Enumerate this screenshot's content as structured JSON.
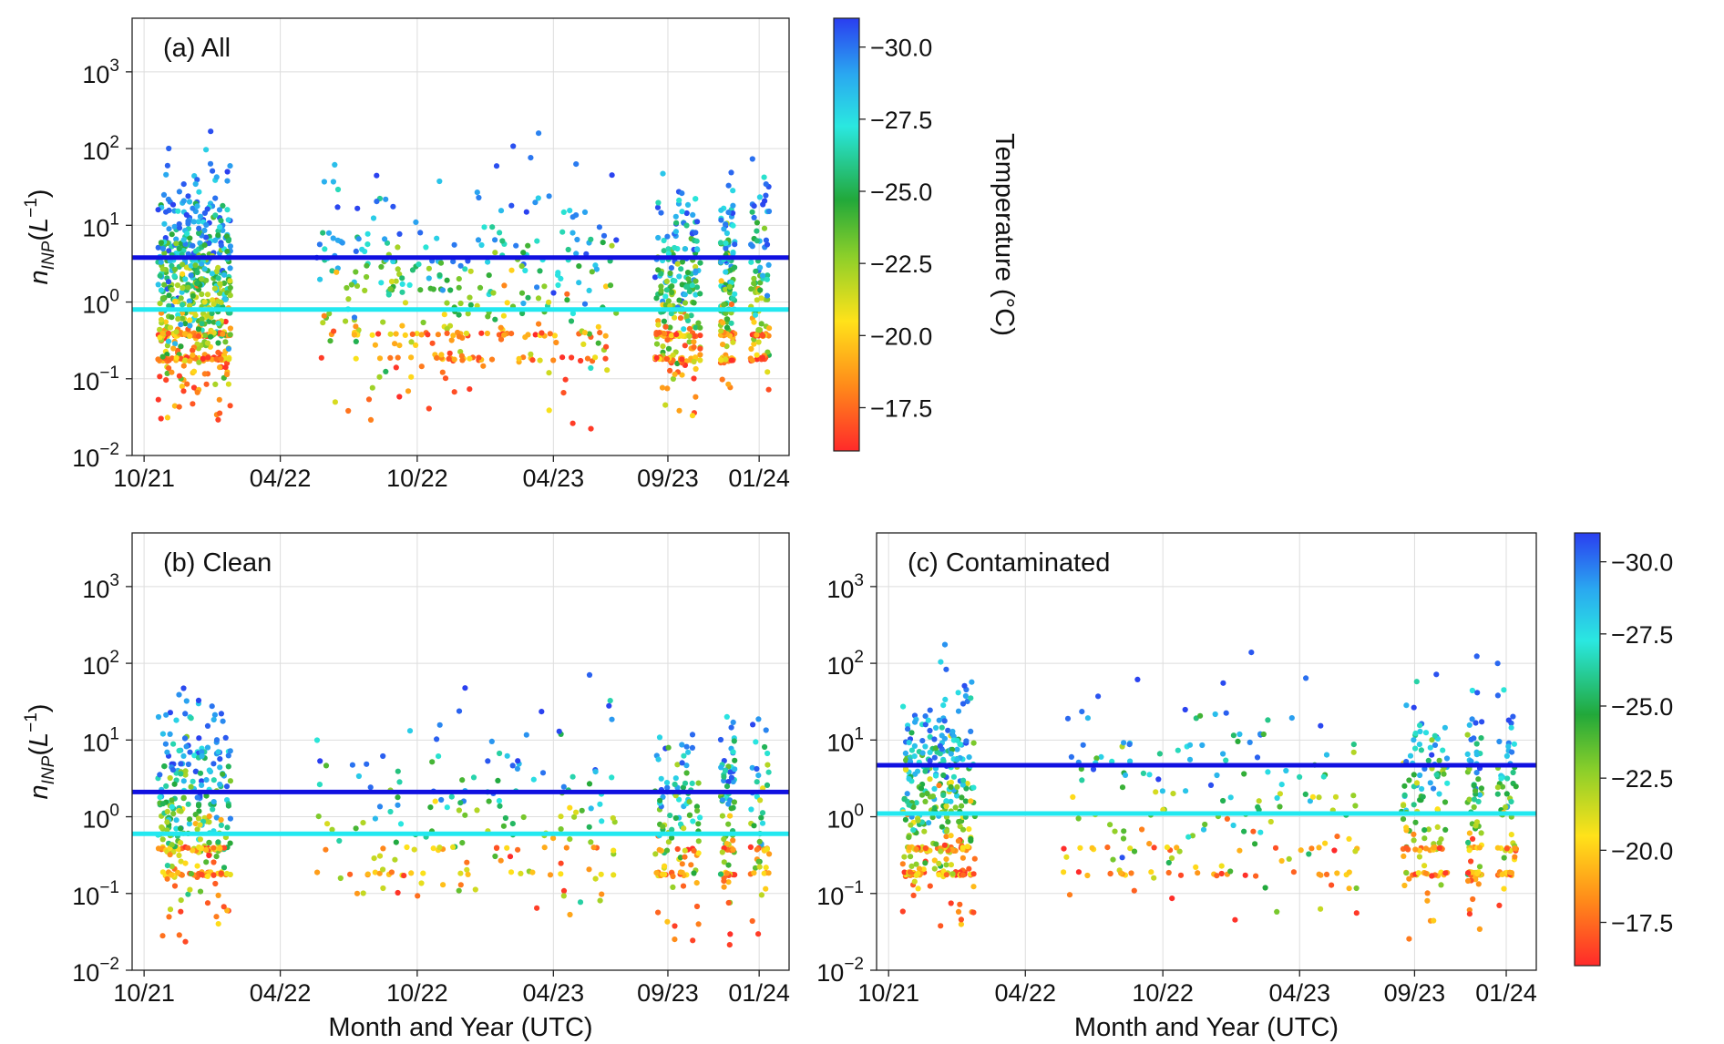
{
  "chart_data": [
    {
      "type": "scatter",
      "panel": "a",
      "title": "(a) All",
      "xlabel": "",
      "ylabel": "n_INP(L^-1)",
      "y_scale": "log",
      "ylim": [
        0.01,
        5000
      ],
      "xlim": [
        "2021-09-15",
        "2024-02-10"
      ],
      "x_ticks": [
        "10/21",
        "04/22",
        "10/22",
        "04/23",
        "09/23",
        "01/24"
      ],
      "y_ticks": [
        "10^-2",
        "10^-1",
        "10^0",
        "10^1",
        "10^2",
        "10^3"
      ],
      "grid": true,
      "colorbar": "shown",
      "hlines": [
        {
          "color": "#1010e0",
          "y": 3.8
        },
        {
          "color": "#22e8f0",
          "y": 0.8
        }
      ],
      "campaigns": [
        {
          "start": "2021-10-20",
          "end": "2022-01-25"
        },
        {
          "start": "2022-05-20",
          "end": "2023-06-25"
        },
        {
          "start": "2023-08-15",
          "end": "2023-10-15"
        },
        {
          "start": "2023-11-10",
          "end": "2023-11-30"
        },
        {
          "start": "2023-12-20",
          "end": "2024-01-15"
        }
      ],
      "point_count_estimate": 9000
    },
    {
      "type": "scatter",
      "panel": "b",
      "title": "(b) Clean",
      "xlabel": "Month and Year (UTC)",
      "ylabel": "n_INP(L^-1)",
      "y_scale": "log",
      "ylim": [
        0.01,
        5000
      ],
      "xlim": [
        "2021-09-15",
        "2024-02-10"
      ],
      "x_ticks": [
        "10/21",
        "04/22",
        "10/22",
        "04/23",
        "09/23",
        "01/24"
      ],
      "y_ticks": [
        "10^-2",
        "10^-1",
        "10^0",
        "10^1",
        "10^2",
        "10^3"
      ],
      "grid": true,
      "colorbar": "none",
      "hlines": [
        {
          "color": "#1010e0",
          "y": 2.1
        },
        {
          "color": "#22e8f0",
          "y": 0.6
        }
      ],
      "point_count_estimate": 4500
    },
    {
      "type": "scatter",
      "panel": "c",
      "title": "(c) Contaminated",
      "xlabel": "Month and Year (UTC)",
      "ylabel": "",
      "y_scale": "log",
      "ylim": [
        0.01,
        5000
      ],
      "xlim": [
        "2021-09-15",
        "2024-02-10"
      ],
      "x_ticks": [
        "10/21",
        "04/22",
        "10/22",
        "04/23",
        "09/23",
        "01/24"
      ],
      "y_ticks": [
        "10^-2",
        "10^-1",
        "10^0",
        "10^1",
        "10^2",
        "10^3"
      ],
      "grid": true,
      "colorbar": "shown",
      "hlines": [
        {
          "color": "#1010e0",
          "y": 4.7
        },
        {
          "color": "#22e8f0",
          "y": 1.1
        }
      ],
      "point_count_estimate": 5000
    }
  ],
  "colorbar": {
    "label": "Temperature (°C)",
    "range": [
      -16,
      -31
    ],
    "ticks": [
      "−30.0",
      "−27.5",
      "−25.0",
      "−22.5",
      "−20.0",
      "−17.5"
    ],
    "tick_values": [
      -30,
      -27.5,
      -25,
      -22.5,
      -20,
      -17.5
    ],
    "colormap": "jet_r (red = warm, blue = cold)"
  },
  "y_ticks": [
    {
      "base": "10",
      "exp": "−2"
    },
    {
      "base": "10",
      "exp": "−1"
    },
    {
      "base": "10",
      "exp": "0"
    },
    {
      "base": "10",
      "exp": "1"
    },
    {
      "base": "10",
      "exp": "2"
    },
    {
      "base": "10",
      "exp": "3"
    }
  ],
  "x_tick_labels": [
    "10/21",
    "04/22",
    "10/22",
    "04/23",
    "09/23",
    "01/24"
  ],
  "ylabel_parts": {
    "n": "n",
    "sub": "INP",
    "open": "(",
    "L": "L",
    "sup": "−1",
    "close": ")"
  },
  "xlabel_text": "Month and Year (UTC)",
  "panel_titles": {
    "a": "(a) All",
    "b": "(b) Clean",
    "c": "(c) Contaminated"
  },
  "colors": {
    "mean_line": "#1010e0",
    "median_line": "#22e8f0",
    "grid": "#dddddd",
    "frame": "#222222"
  }
}
